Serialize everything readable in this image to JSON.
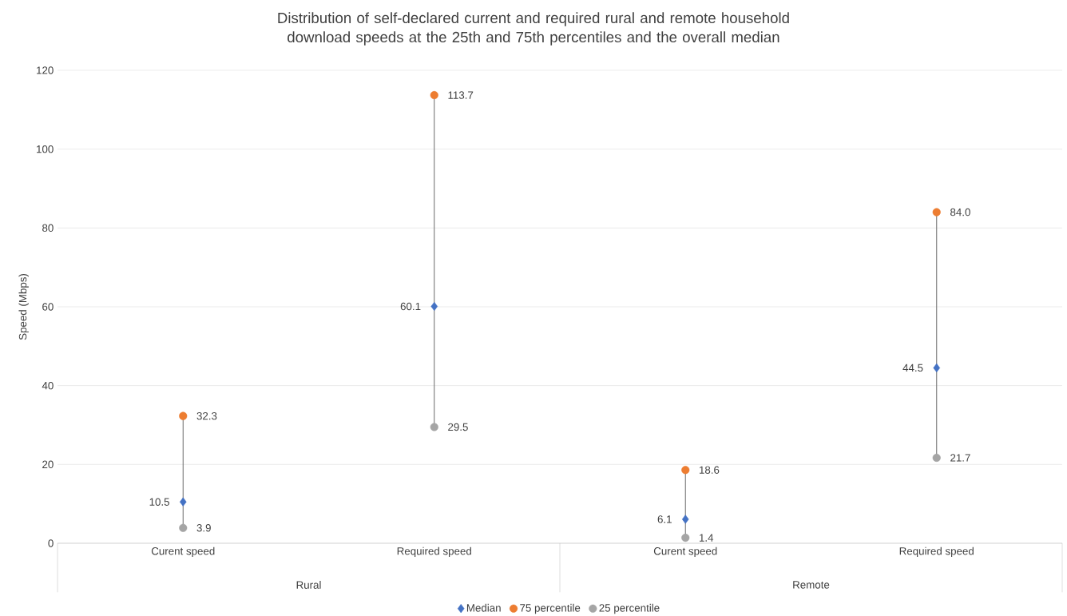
{
  "chart_data": {
    "type": "scatter",
    "title": "Distribution of self-declared current and required rural and remote household download speeds at the 25th and 75th percentiles and the overall median",
    "ylabel": "Speed (Mbps)",
    "categories": [
      "Curent speed",
      "Required speed",
      "Curent speed",
      "Required speed"
    ],
    "annotations": [
      "Rural",
      "Remote"
    ],
    "series": [
      {
        "name": "Median",
        "color": "#4472c4",
        "marker": "diamond",
        "values": [
          10.5,
          60.1,
          6.1,
          44.5
        ],
        "value_labels": [
          "10.5",
          "60.1",
          "6.1",
          "44.5"
        ]
      },
      {
        "name": "75 percentile",
        "color": "#ed7d31",
        "marker": "circle",
        "values": [
          32.3,
          113.7,
          18.6,
          84.0
        ],
        "value_labels": [
          "32.3",
          "113.7",
          "18.6",
          "84.0"
        ]
      },
      {
        "name": "25 percentile",
        "color": "#a5a5a5",
        "marker": "circle",
        "values": [
          3.9,
          29.5,
          1.4,
          21.7
        ],
        "value_labels": [
          "3.9",
          "29.5",
          "1.4",
          "21.7"
        ]
      }
    ],
    "ylim": [
      0,
      120
    ],
    "yticks": [
      0,
      20,
      40,
      60,
      80,
      100,
      120
    ],
    "grid": "y",
    "legend": "bottom"
  }
}
